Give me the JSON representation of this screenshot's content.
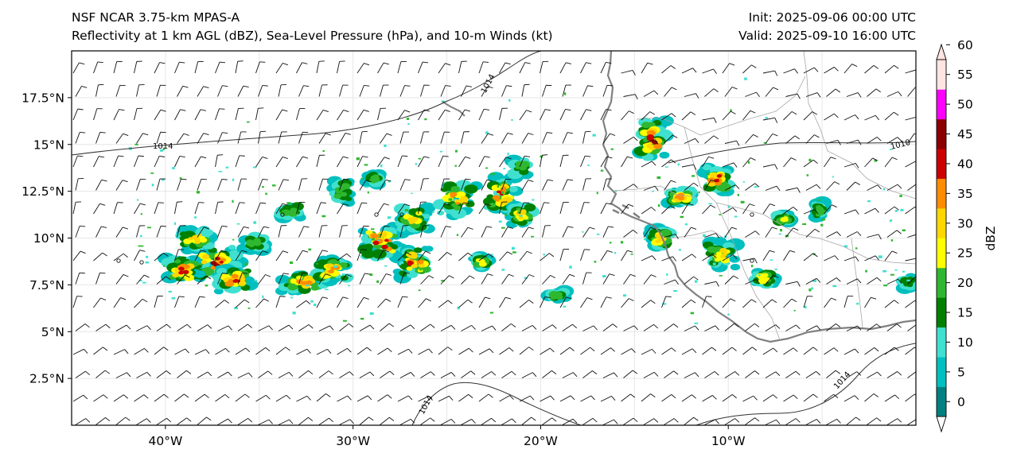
{
  "header": {
    "model": "NSF NCAR 3.75-km MPAS-A",
    "fields": "Reflectivity at 1 km AGL (dBZ), Sea-Level Pressure (hPa), and 10-m Winds (kt)",
    "init": "Init: 2025-09-06 00:00 UTC",
    "valid": "Valid: 2025-09-10 16:00 UTC"
  },
  "axes": {
    "lat_ticks": [
      "17.5°N",
      "15°N",
      "12.5°N",
      "10°N",
      "7.5°N",
      "5°N",
      "2.5°N"
    ],
    "lon_ticks": [
      "40°W",
      "30°W",
      "20°W",
      "10°W"
    ],
    "lon_range": [
      -45,
      0
    ],
    "lat_range": [
      0,
      20
    ]
  },
  "colorbar": {
    "label": "dBZ",
    "tick_labels": [
      "0",
      "5",
      "10",
      "15",
      "20",
      "25",
      "30",
      "35",
      "40",
      "45",
      "50",
      "55",
      "60"
    ],
    "colors": [
      "#008080",
      "#00bfbf",
      "#40e0d0",
      "#008000",
      "#2fb82f",
      "#ffff00",
      "#ffd700",
      "#ff8c00",
      "#cc0000",
      "#8b0000",
      "#ff00ff",
      "#ffe4e1"
    ]
  },
  "contours": {
    "labels": [
      "1014",
      "1014",
      "1010",
      "1014",
      "1014"
    ]
  }
}
